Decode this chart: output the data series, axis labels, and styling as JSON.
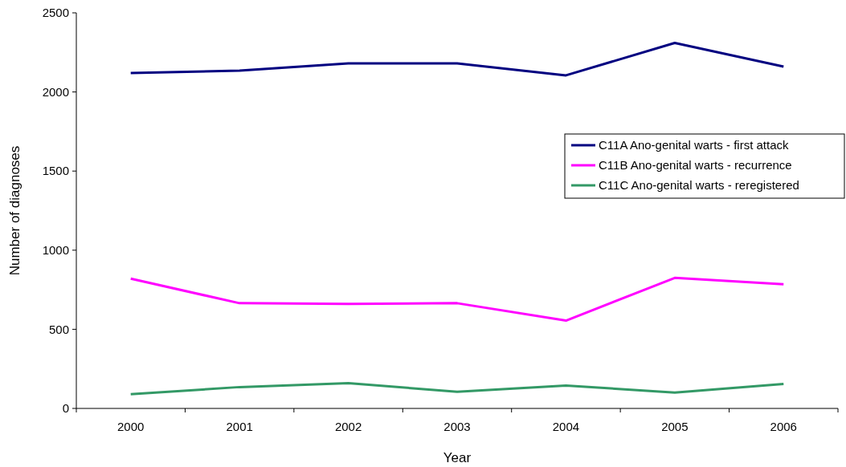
{
  "chart_data": {
    "type": "line",
    "xlabel": "Year",
    "ylabel": "Number of diagnoses",
    "categories": [
      "2000",
      "2001",
      "2002",
      "2003",
      "2004",
      "2005",
      "2006"
    ],
    "series": [
      {
        "name": "C11A Ano-genital warts - first attack",
        "color": "#000080",
        "values": [
          2120,
          2135,
          2180,
          2180,
          2105,
          2310,
          2160
        ]
      },
      {
        "name": "C11B Ano-genital warts - recurrence",
        "color": "#ff00ff",
        "values": [
          820,
          665,
          660,
          665,
          555,
          825,
          785
        ]
      },
      {
        "name": "C11C Ano-genital warts - reregistered",
        "color": "#339966",
        "values": [
          90,
          135,
          160,
          105,
          145,
          100,
          155
        ]
      }
    ],
    "ylim": [
      0,
      2500
    ],
    "yticks": [
      0,
      500,
      1000,
      1500,
      2000,
      2500
    ],
    "grid": false,
    "legend": "right",
    "marker": "none",
    "line_style": "solid"
  }
}
